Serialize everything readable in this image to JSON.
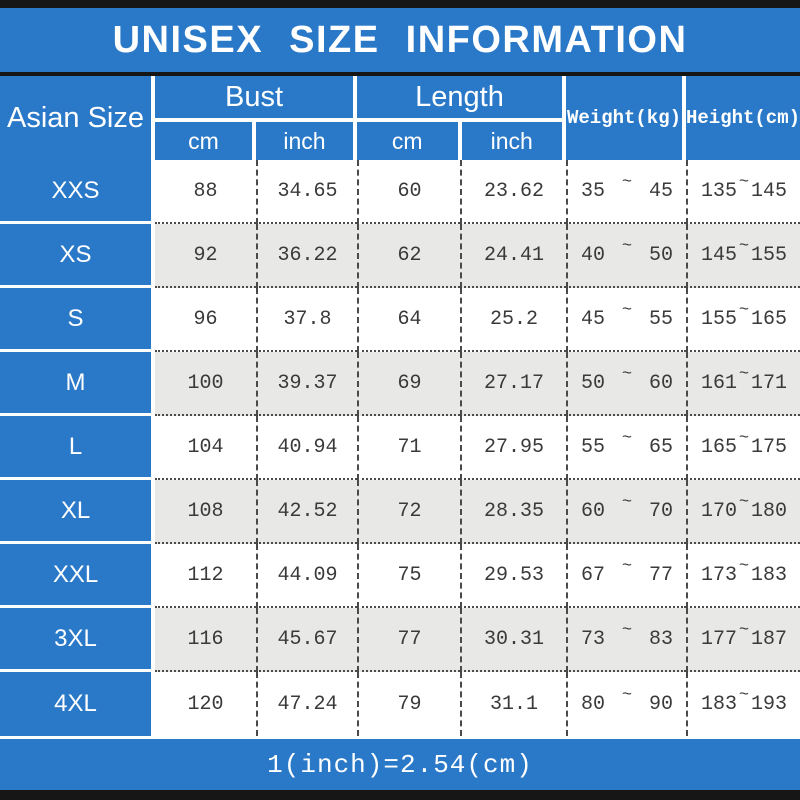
{
  "title": "UNISEX SIZE INFORMATION",
  "footer_note": "1(inch)=2.54(cm)",
  "range_separator": "~",
  "headers": {
    "size": "Asian Size",
    "bust": "Bust",
    "length": "Length",
    "weight": "Weight(kg)",
    "height": "Height(cm)",
    "unit_cm": "cm",
    "unit_inch": "inch"
  },
  "colors": {
    "blue": "#2a79c8",
    "alt_row": "#e8e8e7",
    "bar": "#161616",
    "text": "#3a3a3a"
  },
  "chart_data": {
    "type": "table",
    "title": "UNISEX SIZE INFORMATION",
    "footnote": "1(inch)=2.54(cm)",
    "columns": [
      "Asian Size",
      "Bust cm",
      "Bust inch",
      "Length cm",
      "Length inch",
      "Weight(kg)",
      "Height(cm)"
    ],
    "rows": [
      {
        "size": "XXS",
        "bust_cm": "88",
        "bust_inch": "34.65",
        "length_cm": "60",
        "length_inch": "23.62",
        "weight_min": "35",
        "weight_max": "45",
        "height_min": "135",
        "height_max": "145"
      },
      {
        "size": "XS",
        "bust_cm": "92",
        "bust_inch": "36.22",
        "length_cm": "62",
        "length_inch": "24.41",
        "weight_min": "40",
        "weight_max": "50",
        "height_min": "145",
        "height_max": "155"
      },
      {
        "size": "S",
        "bust_cm": "96",
        "bust_inch": "37.8",
        "length_cm": "64",
        "length_inch": "25.2",
        "weight_min": "45",
        "weight_max": "55",
        "height_min": "155",
        "height_max": "165"
      },
      {
        "size": "M",
        "bust_cm": "100",
        "bust_inch": "39.37",
        "length_cm": "69",
        "length_inch": "27.17",
        "weight_min": "50",
        "weight_max": "60",
        "height_min": "161",
        "height_max": "171"
      },
      {
        "size": "L",
        "bust_cm": "104",
        "bust_inch": "40.94",
        "length_cm": "71",
        "length_inch": "27.95",
        "weight_min": "55",
        "weight_max": "65",
        "height_min": "165",
        "height_max": "175"
      },
      {
        "size": "XL",
        "bust_cm": "108",
        "bust_inch": "42.52",
        "length_cm": "72",
        "length_inch": "28.35",
        "weight_min": "60",
        "weight_max": "70",
        "height_min": "170",
        "height_max": "180"
      },
      {
        "size": "XXL",
        "bust_cm": "112",
        "bust_inch": "44.09",
        "length_cm": "75",
        "length_inch": "29.53",
        "weight_min": "67",
        "weight_max": "77",
        "height_min": "173",
        "height_max": "183"
      },
      {
        "size": "3XL",
        "bust_cm": "116",
        "bust_inch": "45.67",
        "length_cm": "77",
        "length_inch": "30.31",
        "weight_min": "73",
        "weight_max": "83",
        "height_min": "177",
        "height_max": "187"
      },
      {
        "size": "4XL",
        "bust_cm": "120",
        "bust_inch": "47.24",
        "length_cm": "79",
        "length_inch": "31.1",
        "weight_min": "80",
        "weight_max": "90",
        "height_min": "183",
        "height_max": "193"
      }
    ]
  }
}
